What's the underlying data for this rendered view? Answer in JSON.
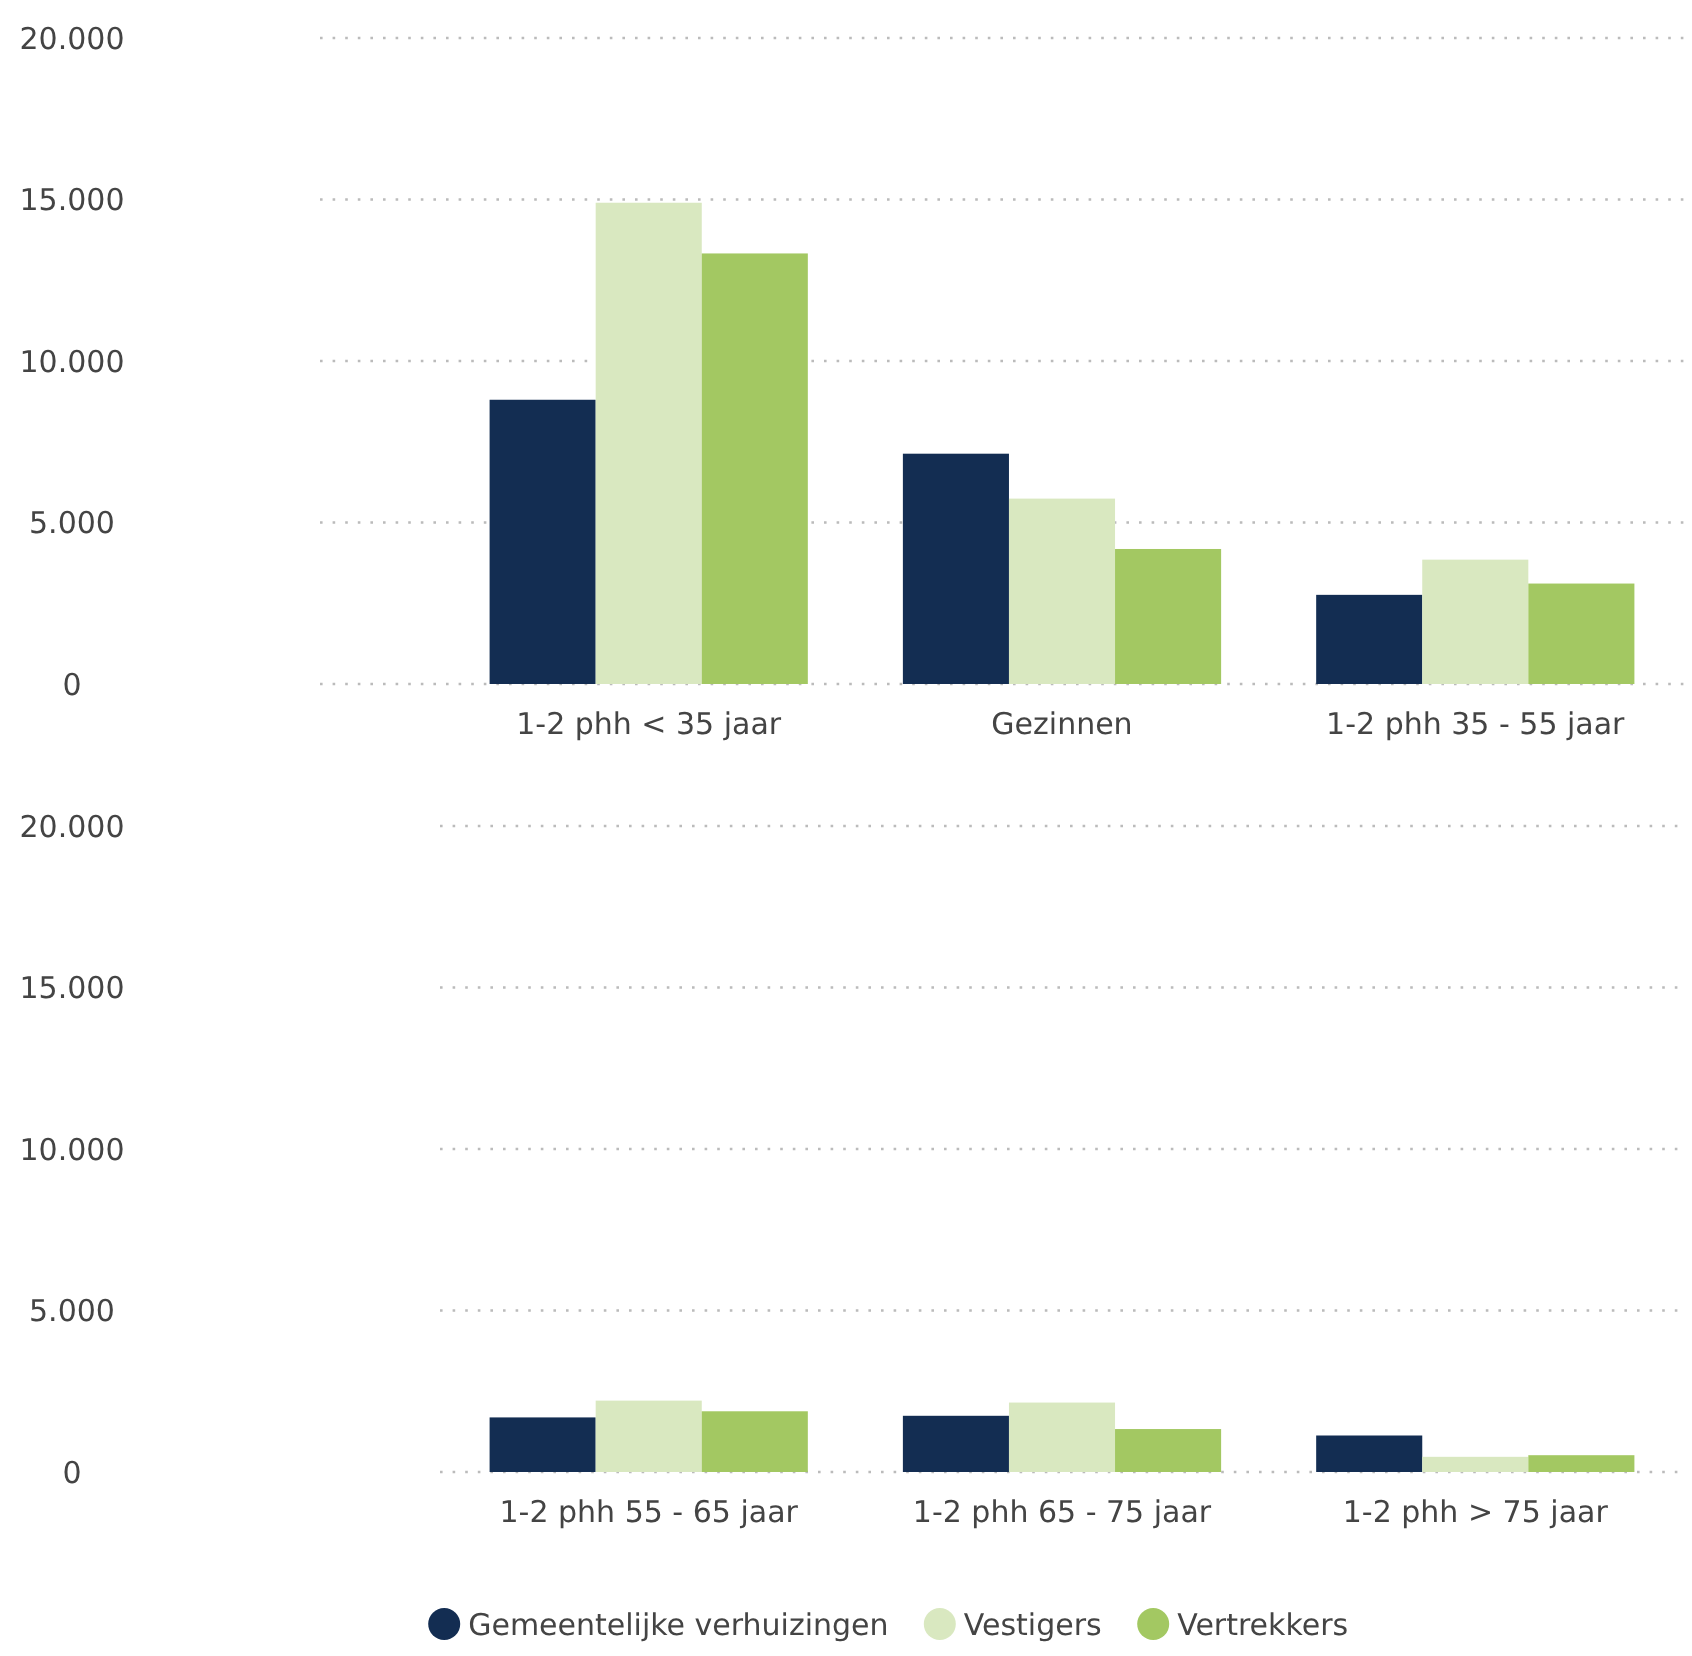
{
  "chart_data": [
    {
      "type": "bar",
      "categories": [
        "1-2 phh < 35 jaar",
        "Gezinnen",
        "1-2 phh 35 - 55 jaar"
      ],
      "series": [
        {
          "color": "#132d52",
          "values": [
            8800,
            7130,
            2760
          ]
        },
        {
          "color": "#d9e8c0",
          "values": [
            14900,
            5740,
            3850
          ]
        },
        {
          "color": "#a3c862",
          "values": [
            13330,
            4180,
            3110
          ]
        }
      ],
      "ylim": [
        0,
        20000
      ],
      "yticks": [
        {
          "value": 0,
          "label": "0"
        },
        {
          "value": 5000,
          "label": "5.000"
        },
        {
          "value": 10000,
          "label": "10.000"
        },
        {
          "value": 15000,
          "label": "15.000"
        },
        {
          "value": 20000,
          "label": "20.000"
        }
      ],
      "grid": "y",
      "legend": false
    },
    {
      "type": "bar",
      "categories": [
        "1-2 phh 55 - 65 jaar",
        "1-2 phh 65 - 75 jaar",
        "1-2 phh > 75 jaar"
      ],
      "series": [
        {
          "name": "Gemeentelijke verhuizingen",
          "color": "#132d52",
          "values": [
            1690,
            1740,
            1130
          ]
        },
        {
          "name": "Vestigers",
          "color": "#d9e8c0",
          "values": [
            2210,
            2150,
            470
          ]
        },
        {
          "name": "Vertrekkers",
          "color": "#a3c862",
          "values": [
            1880,
            1330,
            520
          ]
        }
      ],
      "ylim": [
        0,
        20000
      ],
      "yticks": [
        {
          "value": 0,
          "label": "0"
        },
        {
          "value": 5000,
          "label": "5.000"
        },
        {
          "value": 10000,
          "label": "10.000"
        },
        {
          "value": 15000,
          "label": "15.000"
        },
        {
          "value": 20000,
          "label": "20.000"
        }
      ],
      "grid": "y",
      "legend": "bottom"
    }
  ]
}
